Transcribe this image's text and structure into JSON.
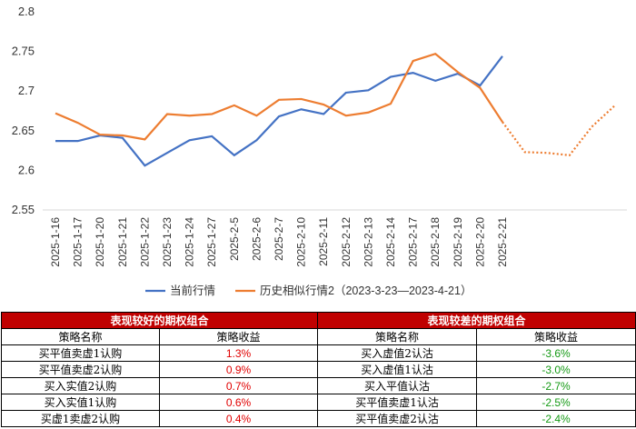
{
  "chart_data": {
    "type": "line",
    "categories": [
      "2025-1-16",
      "2025-1-17",
      "2025-1-20",
      "2025-1-21",
      "2025-1-22",
      "2025-1-23",
      "2025-1-24",
      "2025-1-27",
      "2025-2-5",
      "2025-2-6",
      "2025-2-7",
      "2025-2-10",
      "2025-2-11",
      "2025-2-12",
      "2025-2-13",
      "2025-2-14",
      "2025-2-17",
      "2025-2-18",
      "2025-2-19",
      "2025-2-20",
      "2025-2-21",
      null,
      null,
      null,
      null,
      null
    ],
    "series": [
      {
        "name": "当前行情",
        "color": "#4472c4",
        "values": [
          2.637,
          2.637,
          2.644,
          2.641,
          2.606,
          2.622,
          2.638,
          2.643,
          2.619,
          2.638,
          2.668,
          2.677,
          2.671,
          2.698,
          2.701,
          2.718,
          2.723,
          2.713,
          2.722,
          2.707,
          2.744,
          null,
          null,
          null,
          null,
          null
        ]
      },
      {
        "name": "历史相似行情2（2023-3-23—2023-4-21）",
        "color": "#ed7d31",
        "dashed_from": 20,
        "values": [
          2.672,
          2.66,
          2.645,
          2.644,
          2.639,
          2.671,
          2.669,
          2.671,
          2.682,
          2.669,
          2.689,
          2.69,
          2.683,
          2.669,
          2.673,
          2.684,
          2.738,
          2.747,
          2.724,
          2.704,
          2.661,
          2.623,
          2.622,
          2.619,
          2.655,
          2.681
        ]
      }
    ],
    "ylim": [
      2.55,
      2.8
    ],
    "yticks": [
      2.55,
      2.6,
      2.65,
      2.7,
      2.75,
      2.8
    ],
    "grid": false,
    "legend": "bottom"
  },
  "table": {
    "titles": [
      "表现较好的期权组合",
      "表现较差的期权组合"
    ],
    "headers": [
      "策略名称",
      "策略收益",
      "策略名称",
      "策略收益"
    ],
    "rows": [
      [
        "买平值卖虚1认购",
        "1.3%",
        "买入虚值2认沽",
        "-3.6%"
      ],
      [
        "买平值卖虚2认购",
        "0.9%",
        "买入虚值1认沽",
        "-3.0%"
      ],
      [
        "买入实值2认购",
        "0.7%",
        "买入平值认沽",
        "-2.7%"
      ],
      [
        "买入实值1认购",
        "0.6%",
        "买平值卖虚1认沽",
        "-2.5%"
      ],
      [
        "买虚1卖虚2认购",
        "0.4%",
        "买平值卖虚2认沽",
        "-2.4%"
      ]
    ]
  }
}
